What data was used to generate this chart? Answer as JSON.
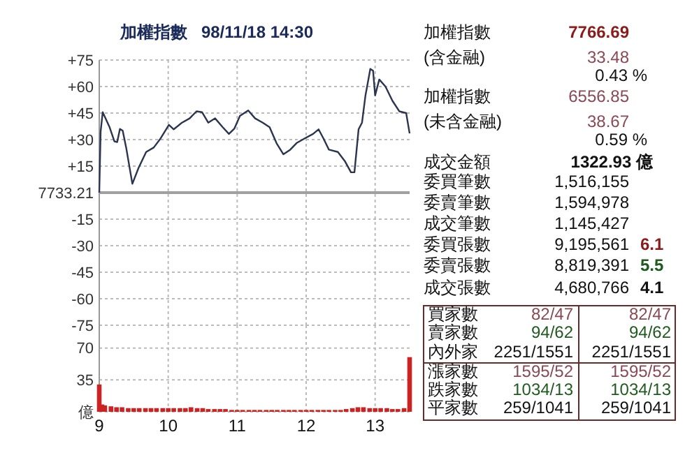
{
  "chart_data": [
    {
      "type": "line",
      "title": "加權指數   98/11/18 14:30",
      "xlim": [
        9,
        13.5
      ],
      "xticks": [
        9,
        10,
        11,
        12,
        13
      ],
      "ylim": [
        -75,
        75
      ],
      "yticks": [
        -75,
        -60,
        -45,
        -30,
        -15,
        {
          "value": 0,
          "label": null
        },
        {
          "value": 15,
          "label": "+15"
        },
        {
          "value": 30,
          "label": "+30"
        },
        {
          "value": 45,
          "label": "+45"
        },
        {
          "value": 60,
          "label": "+60"
        },
        {
          "value": 75,
          "label": "+75"
        }
      ],
      "grid": true,
      "tick_labels": "y",
      "line_style": "solid",
      "ref_lines": [
        {
          "axis": "y",
          "value": 0,
          "color": "#a0a0a0"
        }
      ],
      "annotations": [
        "7733.21"
      ],
      "series": [
        {
          "color": "#2b3550",
          "x": [
            9.0,
            9.02,
            9.05,
            9.15,
            9.22,
            9.26,
            9.3,
            9.34,
            9.39,
            9.48,
            9.57,
            9.68,
            9.79,
            9.89,
            10.01,
            10.08,
            10.2,
            10.31,
            10.41,
            10.49,
            10.58,
            10.68,
            10.79,
            10.88,
            10.96,
            11.04,
            11.16,
            11.26,
            11.37,
            11.47,
            11.57,
            11.67,
            11.77,
            11.86,
            11.98,
            12.1,
            12.18,
            12.25,
            12.33,
            12.46,
            12.56,
            12.65,
            12.7,
            12.76,
            12.81,
            12.86,
            12.93,
            12.97,
            13.0,
            13.06,
            13.15,
            13.25,
            13.35,
            13.45,
            13.5
          ],
          "values": [
            0,
            34.5,
            45.5,
            37,
            29,
            28.6,
            36,
            35,
            25.5,
            5,
            14,
            23,
            25.5,
            30.7,
            38.3,
            35.8,
            39.6,
            42,
            46,
            45.5,
            39.6,
            42,
            37,
            33.2,
            36.3,
            43.4,
            46.5,
            42,
            39.6,
            37,
            28,
            21.7,
            24.3,
            28,
            30.7,
            33.2,
            35.8,
            30.7,
            24.3,
            23,
            17.9,
            11.5,
            11.5,
            35.8,
            39.6,
            55,
            70,
            69,
            55,
            64,
            60,
            52,
            46,
            45,
            33.5
          ]
        }
      ]
    },
    {
      "type": "bar",
      "xlim": [
        9,
        13.5
      ],
      "xticks": [
        9,
        10,
        11,
        12,
        13
      ],
      "ylim": [
        0,
        95
      ],
      "yticks": [
        {
          "value": 0,
          "label": "億"
        },
        35,
        70
      ],
      "grid": true,
      "color": "#cc2222",
      "x": [
        9.0,
        9.04,
        9.08,
        9.17,
        9.25,
        9.33,
        9.42,
        9.5,
        9.58,
        9.67,
        9.75,
        9.83,
        9.92,
        10,
        10.08,
        10.17,
        10.25,
        10.33,
        10.42,
        10.5,
        10.58,
        10.67,
        10.75,
        10.83,
        10.92,
        11,
        11.08,
        11.17,
        11.25,
        11.33,
        11.42,
        11.5,
        11.58,
        11.67,
        11.75,
        11.83,
        11.92,
        12,
        12.08,
        12.17,
        12.25,
        12.33,
        12.42,
        12.5,
        12.58,
        12.67,
        12.75,
        12.83,
        12.92,
        13,
        13.08,
        13.17,
        13.25,
        13.33,
        13.42,
        13.5
      ],
      "values": [
        30,
        8,
        7,
        6,
        5,
        5,
        4,
        4,
        4,
        4,
        4,
        4,
        4,
        4,
        4,
        4,
        4,
        5,
        4,
        4,
        3,
        3,
        3,
        3,
        2,
        2,
        2,
        2,
        2,
        2,
        2,
        2,
        2,
        2,
        2,
        2,
        2,
        2,
        2,
        2,
        2,
        2,
        2,
        2,
        3,
        4,
        5,
        5,
        4,
        4,
        4,
        4,
        3,
        3,
        4,
        60
      ]
    },
    {
      "type": "other",
      "annotations": [
        "加權指數",
        "7766.69",
        "(含金融)",
        "33.48",
        "0.43 %",
        "加權指數",
        "6556.85",
        "(未含金融)",
        "38.67",
        "0.59 %",
        "成交金額",
        "1322.93 億",
        "委買筆數",
        "1,516,155",
        "委賣筆數",
        "1,594,978",
        "成交筆數",
        "1,145,427",
        "委買張數",
        "9,195,561",
        "6.1",
        "委賣張數",
        "8,819,391",
        "5.5",
        "成交張數",
        "4,680,766",
        "4.1",
        "買家數",
        "82/47",
        "82/47",
        "賣家數",
        "94/62",
        "94/62",
        "內外家",
        "2251/1551",
        "2251/1551",
        "漲家數",
        "1595/52",
        "1595/52",
        "跌家數",
        "1034/13",
        "1034/13",
        "平家數",
        "259/1041",
        "259/1041"
      ]
    }
  ]
}
